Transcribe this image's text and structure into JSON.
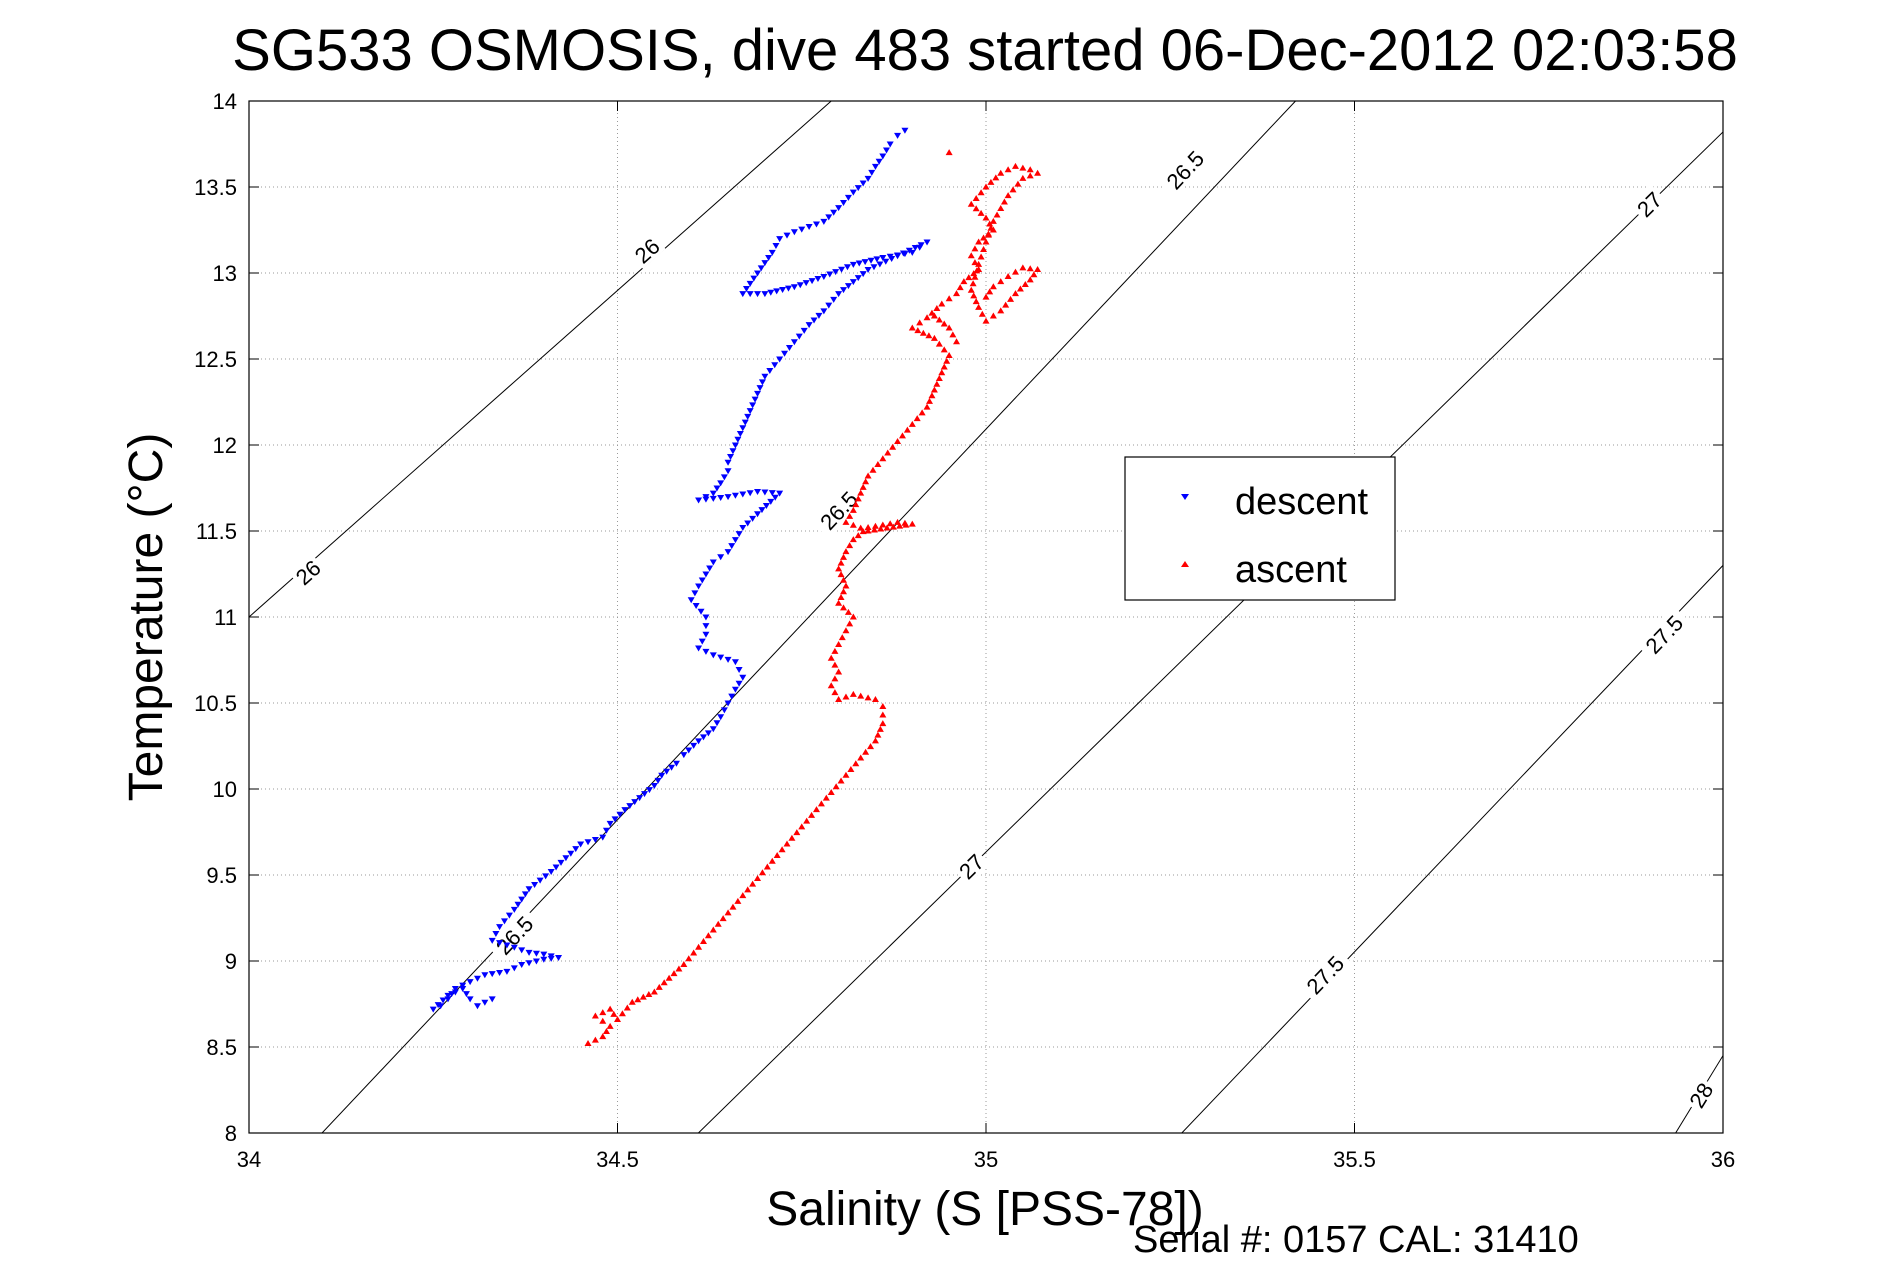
{
  "chart_data": {
    "type": "scatter",
    "title": "SG533 OSMOSIS, dive 483 started 06-Dec-2012 02:03:58",
    "xlabel": "Salinity (S [PSS-78])",
    "ylabel": "Temperature (°C)",
    "xlim": [
      34,
      36
    ],
    "ylim": [
      8,
      14
    ],
    "xticks": [
      34,
      34.5,
      35,
      35.5,
      36
    ],
    "xtick_labels": [
      "34",
      "34.5",
      "35",
      "35.5",
      "36"
    ],
    "yticks": [
      8,
      8.5,
      9,
      9.5,
      10,
      10.5,
      11,
      11.5,
      12,
      12.5,
      13,
      13.5,
      14
    ],
    "ytick_labels": [
      "8",
      "8.5",
      "9",
      "9.5",
      "10",
      "10.5",
      "11",
      "11.5",
      "12",
      "12.5",
      "13",
      "13.5",
      "14"
    ],
    "grid": true,
    "legend_position": "right",
    "footer": "Serial #: 0157  CAL: 31410",
    "density_contours": [
      {
        "level": 26.0,
        "points": [
          [
            34.0,
            11.0
          ],
          [
            34.79,
            14.0
          ]
        ],
        "labels": [
          {
            "text": "26",
            "at": [
              34.08,
              11.26
            ]
          },
          {
            "text": "26",
            "at": [
              34.54,
              13.13
            ]
          }
        ]
      },
      {
        "level": 26.5,
        "points": [
          [
            34.0,
            7.55
          ],
          [
            35.42,
            14.0
          ]
        ],
        "labels": [
          {
            "text": "26.5",
            "at": [
              34.36,
              9.15
            ]
          },
          {
            "text": "26.5",
            "at": [
              34.8,
              11.62
            ]
          },
          {
            "text": "26.5",
            "at": [
              35.27,
              13.6
            ]
          }
        ]
      },
      {
        "level": 27.0,
        "points": [
          [
            34.55,
            7.75
          ],
          [
            36.0,
            13.82
          ]
        ],
        "labels": [
          {
            "text": "27",
            "at": [
              34.98,
              9.55
            ]
          },
          {
            "text": "27",
            "at": [
              35.9,
              13.4
            ]
          }
        ]
      },
      {
        "level": 27.5,
        "points": [
          [
            35.21,
            7.75
          ],
          [
            36.0,
            11.3
          ]
        ],
        "labels": [
          {
            "text": "27.5",
            "at": [
              35.46,
              8.92
            ]
          },
          {
            "text": "27.5",
            "at": [
              35.92,
              10.9
            ]
          }
        ]
      },
      {
        "level": 28.0,
        "points": [
          [
            35.9,
            7.75
          ],
          [
            36.0,
            8.45
          ]
        ],
        "labels": [
          {
            "text": "28",
            "at": [
              35.97,
              8.22
            ]
          }
        ]
      }
    ],
    "series": [
      {
        "name": "descent",
        "color": "#0000ff",
        "marker": "triangle-down",
        "points": [
          [
            34.89,
            13.83
          ],
          [
            34.88,
            13.8
          ],
          [
            34.87,
            13.75
          ],
          [
            34.86,
            13.68
          ],
          [
            34.85,
            13.62
          ],
          [
            34.84,
            13.55
          ],
          [
            34.82,
            13.47
          ],
          [
            34.8,
            13.38
          ],
          [
            34.78,
            13.3
          ],
          [
            34.76,
            13.27
          ],
          [
            34.74,
            13.24
          ],
          [
            34.72,
            13.2
          ],
          [
            34.71,
            13.12
          ],
          [
            34.7,
            13.06
          ],
          [
            34.69,
            13.0
          ],
          [
            34.68,
            12.94
          ],
          [
            34.67,
            12.88
          ],
          [
            34.7,
            12.88
          ],
          [
            34.74,
            12.92
          ],
          [
            34.78,
            12.98
          ],
          [
            34.82,
            13.05
          ],
          [
            34.86,
            13.09
          ],
          [
            34.9,
            13.12
          ],
          [
            34.92,
            13.18
          ],
          [
            34.88,
            13.1
          ],
          [
            34.84,
            13.02
          ],
          [
            34.82,
            12.95
          ],
          [
            34.8,
            12.88
          ],
          [
            34.78,
            12.78
          ],
          [
            34.76,
            12.7
          ],
          [
            34.74,
            12.6
          ],
          [
            34.72,
            12.5
          ],
          [
            34.7,
            12.4
          ],
          [
            34.69,
            12.3
          ],
          [
            34.68,
            12.2
          ],
          [
            34.67,
            12.1
          ],
          [
            34.66,
            12.0
          ],
          [
            34.65,
            11.9
          ],
          [
            34.65,
            11.85
          ],
          [
            34.64,
            11.78
          ],
          [
            34.63,
            11.72
          ],
          [
            34.61,
            11.68
          ],
          [
            34.65,
            11.7
          ],
          [
            34.69,
            11.73
          ],
          [
            34.72,
            11.72
          ],
          [
            34.69,
            11.6
          ],
          [
            34.67,
            11.52
          ],
          [
            34.66,
            11.45
          ],
          [
            34.65,
            11.38
          ],
          [
            34.63,
            11.32
          ],
          [
            34.62,
            11.25
          ],
          [
            34.61,
            11.18
          ],
          [
            34.6,
            11.1
          ],
          [
            34.62,
            11.0
          ],
          [
            34.62,
            10.9
          ],
          [
            34.61,
            10.82
          ],
          [
            34.63,
            10.78
          ],
          [
            34.66,
            10.74
          ],
          [
            34.67,
            10.65
          ],
          [
            34.66,
            10.58
          ],
          [
            34.65,
            10.5
          ],
          [
            34.64,
            10.42
          ],
          [
            34.63,
            10.35
          ],
          [
            34.61,
            10.28
          ],
          [
            34.59,
            10.2
          ],
          [
            34.58,
            10.15
          ],
          [
            34.56,
            10.08
          ],
          [
            34.55,
            10.02
          ],
          [
            34.53,
            9.95
          ],
          [
            34.51,
            9.88
          ],
          [
            34.49,
            9.8
          ],
          [
            34.48,
            9.72
          ],
          [
            34.45,
            9.68
          ],
          [
            34.43,
            9.6
          ],
          [
            34.41,
            9.52
          ],
          [
            34.38,
            9.42
          ],
          [
            34.36,
            9.3
          ],
          [
            34.34,
            9.2
          ],
          [
            34.33,
            9.12
          ],
          [
            34.36,
            9.08
          ],
          [
            34.38,
            9.05
          ],
          [
            34.4,
            9.04
          ],
          [
            34.42,
            9.02
          ],
          [
            34.4,
            9.01
          ],
          [
            34.37,
            8.98
          ],
          [
            34.35,
            8.94
          ],
          [
            34.32,
            8.92
          ],
          [
            34.3,
            8.88
          ],
          [
            34.28,
            8.84
          ],
          [
            34.27,
            8.78
          ],
          [
            34.26,
            8.74
          ],
          [
            34.25,
            8.72
          ],
          [
            34.27,
            8.8
          ],
          [
            34.29,
            8.84
          ],
          [
            34.3,
            8.78
          ],
          [
            34.31,
            8.74
          ],
          [
            34.33,
            8.78
          ]
        ]
      },
      {
        "name": "ascent",
        "color": "#ff0000",
        "marker": "triangle-up",
        "points": [
          [
            34.46,
            8.52
          ],
          [
            34.48,
            8.56
          ],
          [
            34.49,
            8.62
          ],
          [
            34.47,
            8.68
          ],
          [
            34.49,
            8.72
          ],
          [
            34.5,
            8.66
          ],
          [
            34.52,
            8.76
          ],
          [
            34.55,
            8.82
          ],
          [
            34.57,
            8.9
          ],
          [
            34.59,
            8.98
          ],
          [
            34.61,
            9.08
          ],
          [
            34.63,
            9.18
          ],
          [
            34.65,
            9.28
          ],
          [
            34.67,
            9.38
          ],
          [
            34.69,
            9.48
          ],
          [
            34.71,
            9.58
          ],
          [
            34.73,
            9.68
          ],
          [
            34.75,
            9.78
          ],
          [
            34.77,
            9.88
          ],
          [
            34.79,
            9.98
          ],
          [
            34.81,
            10.08
          ],
          [
            34.83,
            10.18
          ],
          [
            34.85,
            10.28
          ],
          [
            34.86,
            10.38
          ],
          [
            34.86,
            10.48
          ],
          [
            34.85,
            10.52
          ],
          [
            34.82,
            10.55
          ],
          [
            34.8,
            10.52
          ],
          [
            34.79,
            10.6
          ],
          [
            34.8,
            10.68
          ],
          [
            34.79,
            10.76
          ],
          [
            34.8,
            10.84
          ],
          [
            34.81,
            10.92
          ],
          [
            34.82,
            11.0
          ],
          [
            34.8,
            11.08
          ],
          [
            34.81,
            11.18
          ],
          [
            34.8,
            11.28
          ],
          [
            34.81,
            11.38
          ],
          [
            34.82,
            11.45
          ],
          [
            34.84,
            11.52
          ],
          [
            34.88,
            11.55
          ],
          [
            34.9,
            11.54
          ],
          [
            34.84,
            11.5
          ],
          [
            34.81,
            11.55
          ],
          [
            34.82,
            11.62
          ],
          [
            34.83,
            11.72
          ],
          [
            34.84,
            11.82
          ],
          [
            34.86,
            11.92
          ],
          [
            34.88,
            12.02
          ],
          [
            34.9,
            12.12
          ],
          [
            34.92,
            12.22
          ],
          [
            34.93,
            12.32
          ],
          [
            34.94,
            12.42
          ],
          [
            34.95,
            12.52
          ],
          [
            34.93,
            12.62
          ],
          [
            34.9,
            12.68
          ],
          [
            34.92,
            12.74
          ],
          [
            34.94,
            12.82
          ],
          [
            34.96,
            12.88
          ],
          [
            34.97,
            12.95
          ],
          [
            34.99,
            13.02
          ],
          [
            34.98,
            13.1
          ],
          [
            34.99,
            13.18
          ],
          [
            35.01,
            13.25
          ],
          [
            35.0,
            13.32
          ],
          [
            34.98,
            13.4
          ],
          [
            35.0,
            13.5
          ],
          [
            35.02,
            13.58
          ],
          [
            35.04,
            13.62
          ],
          [
            35.06,
            13.6
          ],
          [
            35.07,
            13.58
          ],
          [
            35.05,
            13.55
          ],
          [
            35.03,
            13.45
          ],
          [
            35.01,
            13.3
          ],
          [
            35.0,
            13.18
          ],
          [
            34.99,
            13.05
          ],
          [
            34.98,
            12.9
          ],
          [
            34.99,
            12.8
          ],
          [
            35.0,
            12.72
          ],
          [
            35.02,
            12.78
          ],
          [
            35.04,
            12.88
          ],
          [
            35.06,
            12.96
          ],
          [
            35.07,
            13.02
          ],
          [
            35.05,
            13.03
          ],
          [
            35.03,
            12.98
          ],
          [
            35.01,
            12.92
          ],
          [
            35.0,
            12.86
          ],
          [
            34.95,
            13.7
          ],
          [
            34.93,
            12.75
          ],
          [
            34.95,
            12.68
          ],
          [
            34.96,
            12.6
          ]
        ]
      }
    ]
  },
  "legend": {
    "items": [
      {
        "label": "descent",
        "color": "#0000ff"
      },
      {
        "label": "ascent",
        "color": "#ff0000"
      }
    ]
  }
}
